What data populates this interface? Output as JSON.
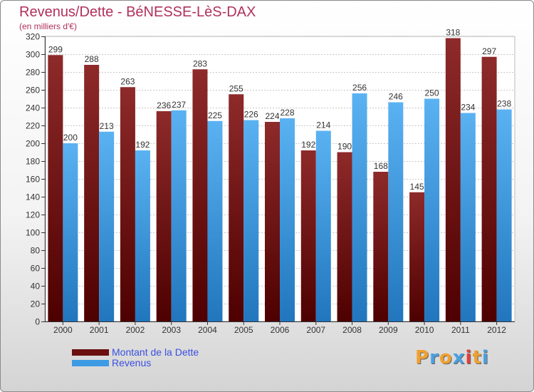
{
  "header": {
    "title": "Revenus/Dette - BéNESSE-LèS-DAX",
    "subtitle": "(en milliers d'€)"
  },
  "chart_data": {
    "type": "bar",
    "categories": [
      "2000",
      "2001",
      "2002",
      "2003",
      "2004",
      "2005",
      "2006",
      "2007",
      "2008",
      "2009",
      "2010",
      "2011",
      "2012"
    ],
    "series": [
      {
        "name": "Montant de la Dette",
        "color": "#8b1a1a",
        "values": [
          299,
          288,
          263,
          236,
          283,
          255,
          224,
          192,
          190,
          168,
          145,
          318,
          297
        ]
      },
      {
        "name": "Revenus",
        "color": "#3d9be3",
        "values": [
          200,
          213,
          192,
          237,
          225,
          226,
          228,
          214,
          256,
          246,
          250,
          234,
          238
        ]
      }
    ],
    "yticks": [
      0,
      20,
      40,
      60,
      80,
      100,
      120,
      140,
      160,
      180,
      200,
      220,
      240,
      260,
      280,
      300,
      320
    ],
    "ylim": [
      0,
      320
    ],
    "grid": true,
    "legend_position": "bottom-left"
  },
  "legend": {
    "items": [
      {
        "label": "Montant de la Dette",
        "color": "#6b0f0f"
      },
      {
        "label": "Revenus",
        "color": "#3d9be3"
      }
    ]
  },
  "logo": {
    "letters": [
      "P",
      "r",
      "o",
      "x",
      "i",
      "t",
      "i"
    ],
    "colors": [
      "#f0a030",
      "#4aa0e0",
      "#f0a030",
      "#4aa0e0",
      "#e04040",
      "#f0a030",
      "#4aa0e0"
    ]
  }
}
